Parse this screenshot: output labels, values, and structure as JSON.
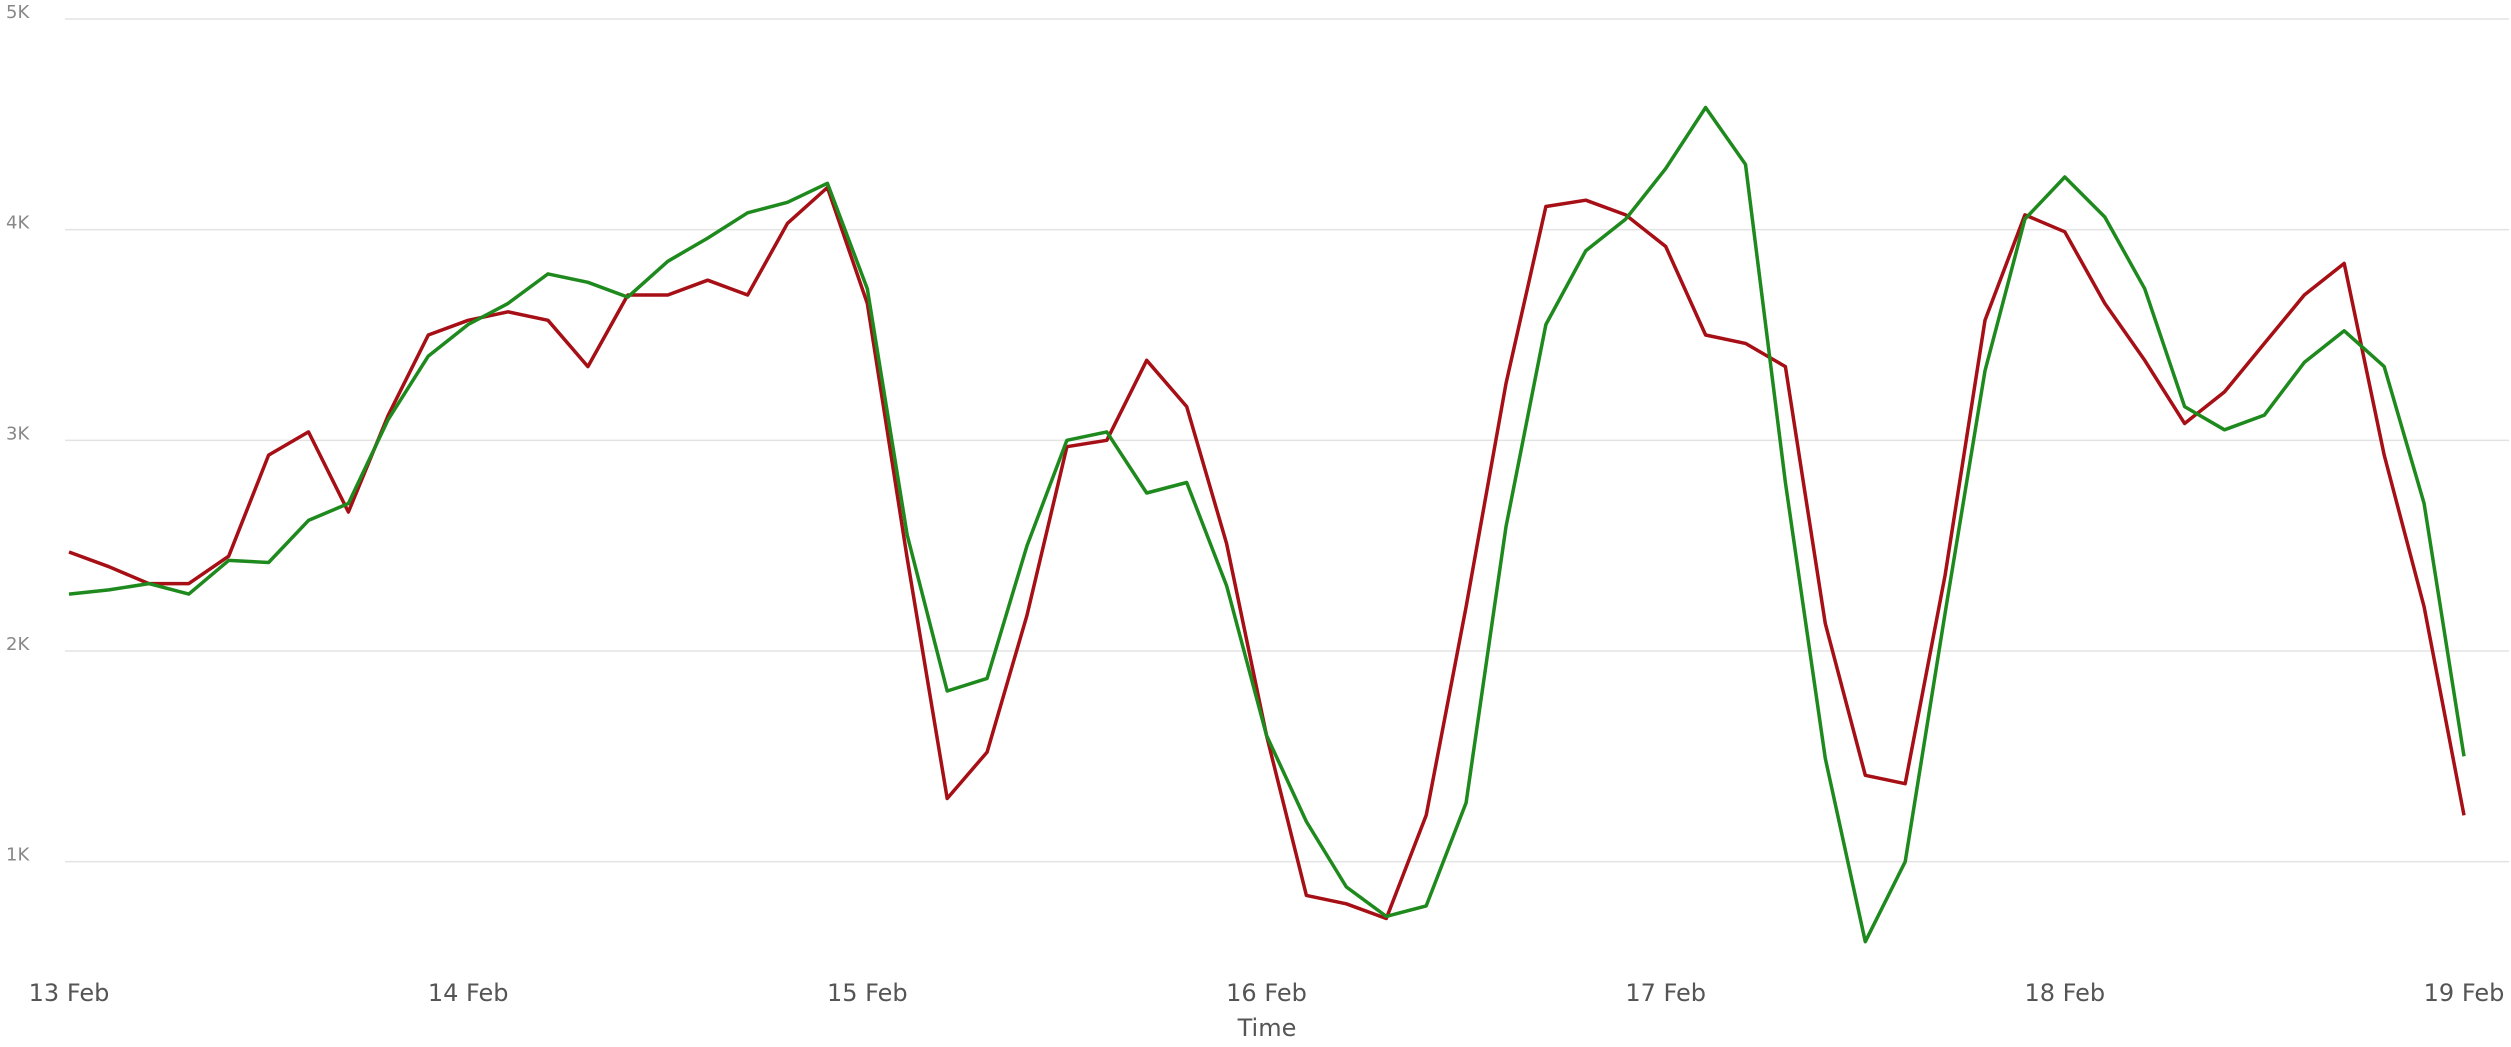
{
  "chart_data": {
    "type": "line",
    "x_label": "Time",
    "xlim": [
      13,
      19
    ],
    "xticks": [
      {
        "value": 13,
        "label": "13 Feb"
      },
      {
        "value": 14,
        "label": "14 Feb"
      },
      {
        "value": 15,
        "label": "15 Feb"
      },
      {
        "value": 16,
        "label": "16 Feb"
      },
      {
        "value": 17,
        "label": "17 Feb"
      },
      {
        "value": 18,
        "label": "18 Feb"
      },
      {
        "value": 19,
        "label": "19 Feb"
      }
    ],
    "ylim": [
      500,
      5000
    ],
    "yticks": [
      {
        "value": 1000,
        "label": "1K"
      },
      {
        "value": 2000,
        "label": "2K"
      },
      {
        "value": 3000,
        "label": "3K"
      },
      {
        "value": 4000,
        "label": "4K"
      },
      {
        "value": 5000,
        "label": "5K"
      }
    ],
    "grid": true,
    "x": [
      13.0,
      13.1,
      13.2,
      13.3,
      13.4,
      13.5,
      13.6,
      13.7,
      13.8,
      13.9,
      14.0,
      14.1,
      14.2,
      14.3,
      14.4,
      14.5,
      14.6,
      14.7,
      14.8,
      14.9,
      15.0,
      15.1,
      15.2,
      15.3,
      15.4,
      15.5,
      15.6,
      15.7,
      15.8,
      15.9,
      16.0,
      16.1,
      16.2,
      16.3,
      16.4,
      16.5,
      16.6,
      16.7,
      16.8,
      16.9,
      17.0,
      17.1,
      17.2,
      17.3,
      17.4,
      17.5,
      17.6,
      17.7,
      17.8,
      17.9,
      18.0,
      18.1,
      18.2,
      18.3,
      18.4,
      18.5,
      18.6,
      18.7,
      18.8,
      18.9,
      19.0
    ],
    "series": [
      {
        "color": "#a50f15",
        "values": [
          2470,
          2400,
          2320,
          2320,
          2450,
          2930,
          3040,
          2660,
          3120,
          3500,
          3570,
          3610,
          3570,
          3350,
          3690,
          3690,
          3760,
          3690,
          4030,
          4200,
          3650,
          2440,
          1300,
          1520,
          2170,
          2970,
          3000,
          3380,
          3160,
          2510,
          1600,
          840,
          800,
          730,
          1220,
          2210,
          3270,
          4110,
          4140,
          4070,
          3920,
          3500,
          3460,
          3350,
          2130,
          1410,
          1370,
          2360,
          3570,
          4070,
          3990,
          3650,
          3380,
          3080,
          3230,
          3460,
          3690,
          3840,
          2930,
          2210,
          1220
        ]
      },
      {
        "color": "#1e8a1e",
        "values": [
          2270,
          2290,
          2320,
          2270,
          2430,
          2420,
          2620,
          2700,
          3100,
          3400,
          3550,
          3650,
          3790,
          3750,
          3680,
          3850,
          3960,
          4080,
          4130,
          4220,
          3720,
          2550,
          1810,
          1870,
          2500,
          3000,
          3040,
          2750,
          2800,
          2310,
          1600,
          1190,
          880,
          740,
          790,
          1280,
          2590,
          3550,
          3900,
          4050,
          4290,
          4580,
          4310,
          2800,
          1490,
          620,
          1000,
          2180,
          3330,
          4050,
          4250,
          4060,
          3720,
          3160,
          3050,
          3120,
          3370,
          3520,
          3350,
          2700,
          1500
        ]
      }
    ]
  }
}
